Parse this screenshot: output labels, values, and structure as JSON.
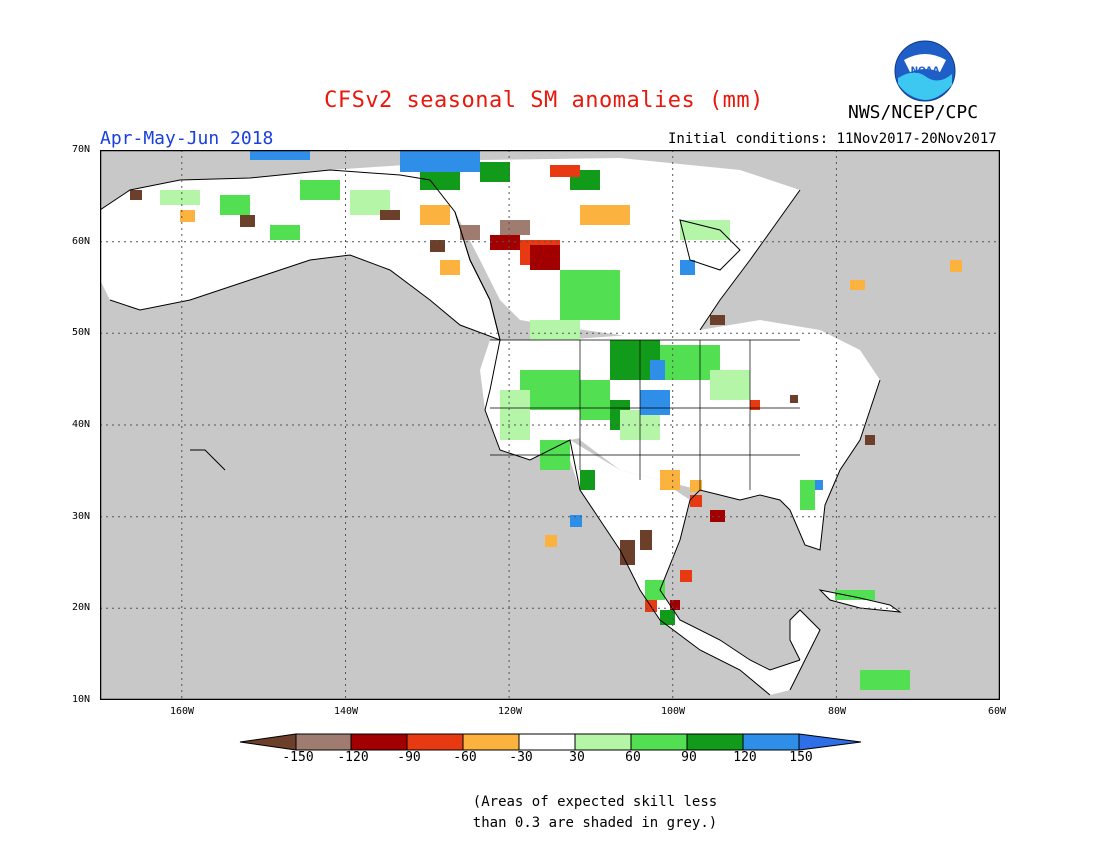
{
  "header": {
    "title": "CFSv2 seasonal SM anomalies (mm)",
    "agency": "NWS/NCEP/CPC",
    "logo_text": "NOAA",
    "season": "Apr-May-Jun 2018",
    "initial_conditions": "Initial conditions: 11Nov2017-20Nov2017"
  },
  "map": {
    "lon_labels": [
      "160W",
      "140W",
      "120W",
      "100W",
      "80W",
      "60W"
    ],
    "lat_labels": [
      "70N",
      "60N",
      "50N",
      "40N",
      "30N",
      "20N",
      "10N"
    ],
    "lon_range": [
      -170,
      -60
    ],
    "lat_range": [
      10,
      70
    ],
    "background_color": "#c8c8c8",
    "land_color": "#ffffff",
    "gridlines": "dotted"
  },
  "colorbar": {
    "ticks": [
      "-150",
      "-120",
      "-90",
      "-60",
      "-30",
      "30",
      "60",
      "90",
      "120",
      "150"
    ],
    "colors": [
      "#6b3f2a",
      "#a07c70",
      "#a20000",
      "#e83a12",
      "#fbb23e",
      "#ffffff",
      "#b4f5a8",
      "#52e052",
      "#129a1a",
      "#2e8ee8",
      "#2e6fe8"
    ]
  },
  "note": {
    "line1": "(Areas of expected skill less",
    "line2": "than 0.3 are shaded in grey.)"
  }
}
